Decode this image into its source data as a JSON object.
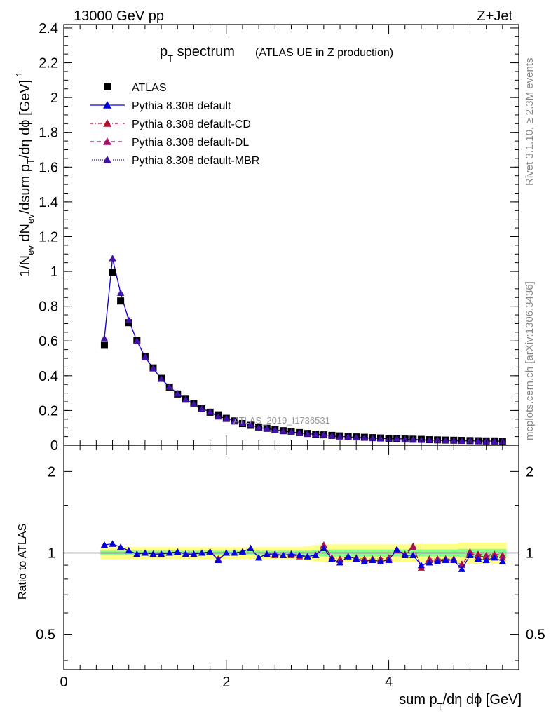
{
  "header": {
    "left": "13000 GeV pp",
    "right": "Z+Jet"
  },
  "side": {
    "top": "Rivet 3.1.10, ≥ 2.3M events",
    "bottom": "mcplots.cern.ch [arXiv:1306.3436]"
  },
  "watermark": "ATLAS_2019_I1736531",
  "chart_data": [
    {
      "type": "scatter",
      "title_main": "p",
      "title_sub": "T",
      "title_rest": " spectrum",
      "title_paren": "(ATLAS UE in Z production)",
      "ylabel_parts": [
        "1/N",
        "ev",
        " dN",
        "ev",
        "/dsum p",
        "T",
        "/dη dϕ  [GeV]",
        "-1"
      ],
      "xlim": [
        0,
        5.6
      ],
      "ylim": [
        0,
        2.42
      ],
      "yticks": [
        {
          "v": 0,
          "label": "0"
        },
        {
          "v": 0.2,
          "label": "0.2"
        },
        {
          "v": 0.4,
          "label": "0.4"
        },
        {
          "v": 0.6,
          "label": "0.6"
        },
        {
          "v": 0.8,
          "label": "0.8"
        },
        {
          "v": 1.0,
          "label": "1"
        },
        {
          "v": 1.2,
          "label": "1.2"
        },
        {
          "v": 1.4,
          "label": "1.4"
        },
        {
          "v": 1.6,
          "label": "1.6"
        },
        {
          "v": 1.8,
          "label": "1.8"
        },
        {
          "v": 2.0,
          "label": "2"
        },
        {
          "v": 2.2,
          "label": "2.2"
        },
        {
          "v": 2.4,
          "label": "2.4"
        }
      ],
      "legend": [
        {
          "name": "ATLAS",
          "marker": "square",
          "color": "#000000",
          "dash": ""
        },
        {
          "name": "Pythia 8.308 default",
          "marker": "triangle",
          "color": "#0000dd",
          "dash": ""
        },
        {
          "name": "Pythia 8.308 default-CD",
          "marker": "triangle",
          "color": "#aa1133",
          "dash": "5,3,1,3"
        },
        {
          "name": "Pythia 8.308 default-DL",
          "marker": "triangle",
          "color": "#aa1166",
          "dash": "6,4"
        },
        {
          "name": "Pythia 8.308 default-MBR",
          "marker": "triangle",
          "color": "#4411aa",
          "dash": "1,2"
        }
      ],
      "x": [
        0.5,
        0.6,
        0.7,
        0.8,
        0.9,
        1.0,
        1.1,
        1.2,
        1.3,
        1.4,
        1.5,
        1.6,
        1.7,
        1.8,
        1.9,
        2.0,
        2.1,
        2.2,
        2.3,
        2.4,
        2.5,
        2.6,
        2.7,
        2.8,
        2.9,
        3.0,
        3.1,
        3.2,
        3.3,
        3.4,
        3.5,
        3.6,
        3.7,
        3.8,
        3.9,
        4.0,
        4.1,
        4.2,
        4.3,
        4.4,
        4.5,
        4.6,
        4.7,
        4.8,
        4.9,
        5.0,
        5.1,
        5.2,
        5.3,
        5.4
      ],
      "data": [
        0.575,
        0.995,
        0.83,
        0.705,
        0.605,
        0.51,
        0.445,
        0.385,
        0.335,
        0.295,
        0.265,
        0.24,
        0.21,
        0.19,
        0.175,
        0.155,
        0.14,
        0.125,
        0.115,
        0.105,
        0.098,
        0.09,
        0.084,
        0.078,
        0.073,
        0.068,
        0.064,
        0.06,
        0.057,
        0.054,
        0.051,
        0.048,
        0.046,
        0.044,
        0.042,
        0.04,
        0.038,
        0.036,
        0.035,
        0.034,
        0.032,
        0.031,
        0.03,
        0.029,
        0.028,
        0.027,
        0.026,
        0.025,
        0.025,
        0.024
      ],
      "mc": [
        0.615,
        1.075,
        0.875,
        0.72,
        0.6,
        0.508,
        0.442,
        0.382,
        0.336,
        0.298,
        0.263,
        0.238,
        0.21,
        0.192,
        0.165,
        0.155,
        0.14,
        0.127,
        0.119,
        0.101,
        0.097,
        0.089,
        0.082,
        0.077,
        0.071,
        0.066,
        0.063,
        0.062,
        0.054,
        0.05,
        0.049,
        0.046,
        0.043,
        0.041,
        0.039,
        0.038,
        0.039,
        0.035,
        0.034,
        0.031,
        0.03,
        0.029,
        0.028,
        0.027,
        0.025,
        0.026,
        0.025,
        0.024,
        0.024,
        0.023
      ]
    },
    {
      "type": "scatter",
      "ylabel": "Ratio to ATLAS",
      "xlabel_parts": [
        "sum p",
        "T",
        "/dη dϕ [GeV]"
      ],
      "log_y": true,
      "ylim": [
        0.37,
        2.5
      ],
      "yticks": [
        {
          "v": 0.5,
          "label": "0.5"
        },
        {
          "v": 1,
          "label": "1"
        },
        {
          "v": 2,
          "label": "2"
        }
      ],
      "xticks": [
        {
          "v": 0,
          "label": "0"
        },
        {
          "v": 2,
          "label": "2"
        },
        {
          "v": 4,
          "label": "4"
        }
      ],
      "band_color_outer": "#ffff88",
      "band_color_inner": "#88ff88",
      "band_inner": [
        0.02,
        0.02,
        0.02,
        0.02,
        0.02,
        0.02,
        0.02,
        0.02,
        0.02,
        0.02,
        0.02,
        0.02,
        0.02,
        0.02,
        0.02,
        0.02,
        0.02,
        0.02,
        0.02,
        0.02,
        0.02,
        0.02,
        0.02,
        0.02,
        0.02,
        0.02,
        0.025,
        0.03,
        0.03,
        0.03,
        0.03,
        0.03,
        0.03,
        0.03,
        0.03,
        0.03,
        0.03,
        0.03,
        0.03,
        0.03,
        0.03,
        0.03,
        0.03,
        0.03,
        0.035,
        0.035,
        0.035,
        0.035,
        0.035,
        0.035
      ],
      "band_outer": [
        0.05,
        0.05,
        0.05,
        0.05,
        0.05,
        0.05,
        0.05,
        0.05,
        0.05,
        0.05,
        0.05,
        0.05,
        0.05,
        0.05,
        0.05,
        0.05,
        0.05,
        0.05,
        0.05,
        0.05,
        0.05,
        0.05,
        0.05,
        0.05,
        0.05,
        0.06,
        0.07,
        0.075,
        0.075,
        0.075,
        0.075,
        0.075,
        0.075,
        0.075,
        0.075,
        0.075,
        0.075,
        0.075,
        0.075,
        0.08,
        0.08,
        0.08,
        0.08,
        0.08,
        0.09,
        0.09,
        0.09,
        0.09,
        0.09,
        0.09
      ],
      "ratios": {
        "default": [
          1.07,
          1.08,
          1.05,
          1.02,
          0.99,
          1.0,
          0.99,
          0.99,
          1.0,
          1.01,
          0.99,
          0.99,
          1.0,
          1.01,
          0.94,
          1.0,
          1.0,
          1.01,
          1.04,
          0.96,
          0.99,
          0.99,
          0.98,
          0.99,
          0.98,
          0.97,
          0.98,
          1.04,
          0.95,
          0.92,
          0.97,
          0.95,
          0.93,
          0.94,
          0.93,
          0.94,
          1.03,
          0.98,
          0.98,
          0.9,
          0.92,
          0.93,
          0.94,
          0.94,
          0.87,
          0.98,
          0.95,
          0.94,
          0.96,
          0.93
        ],
        "cd": [
          1.07,
          1.08,
          1.05,
          1.02,
          0.99,
          1.0,
          0.99,
          0.99,
          1.0,
          1.01,
          0.99,
          0.99,
          1.0,
          1.01,
          0.95,
          1.0,
          1.0,
          1.01,
          1.04,
          0.96,
          0.99,
          0.98,
          0.98,
          0.99,
          0.97,
          0.97,
          0.98,
          1.07,
          0.96,
          0.95,
          0.97,
          0.96,
          0.95,
          0.95,
          0.95,
          0.96,
          1.03,
          0.99,
          1.06,
          0.88,
          0.95,
          0.95,
          0.95,
          0.95,
          0.91,
          1.01,
          0.99,
          0.98,
          0.99,
          0.98
        ],
        "dl": [
          1.07,
          1.08,
          1.05,
          1.02,
          0.99,
          1.0,
          0.99,
          0.99,
          1.0,
          1.01,
          0.99,
          0.99,
          1.0,
          1.01,
          0.95,
          1.0,
          1.0,
          1.01,
          1.04,
          0.96,
          0.99,
          0.98,
          0.98,
          0.98,
          0.97,
          0.97,
          0.98,
          1.07,
          0.96,
          0.94,
          0.97,
          0.95,
          0.94,
          0.94,
          0.94,
          0.95,
          1.02,
          0.98,
          1.05,
          0.89,
          0.94,
          0.94,
          0.95,
          0.94,
          0.9,
          1.0,
          0.97,
          0.97,
          0.98,
          0.96
        ],
        "mbr": [
          1.07,
          1.08,
          1.05,
          1.02,
          0.99,
          1.0,
          0.99,
          0.99,
          1.0,
          1.01,
          0.99,
          0.99,
          1.0,
          1.01,
          0.94,
          1.0,
          1.0,
          1.01,
          1.04,
          0.96,
          0.99,
          0.99,
          0.98,
          0.99,
          0.98,
          0.97,
          0.98,
          1.04,
          0.95,
          0.92,
          0.97,
          0.95,
          0.93,
          0.94,
          0.93,
          0.94,
          1.03,
          0.98,
          0.98,
          0.9,
          0.92,
          0.93,
          0.94,
          0.94,
          0.87,
          0.98,
          0.95,
          0.94,
          0.96,
          0.93
        ]
      }
    }
  ]
}
